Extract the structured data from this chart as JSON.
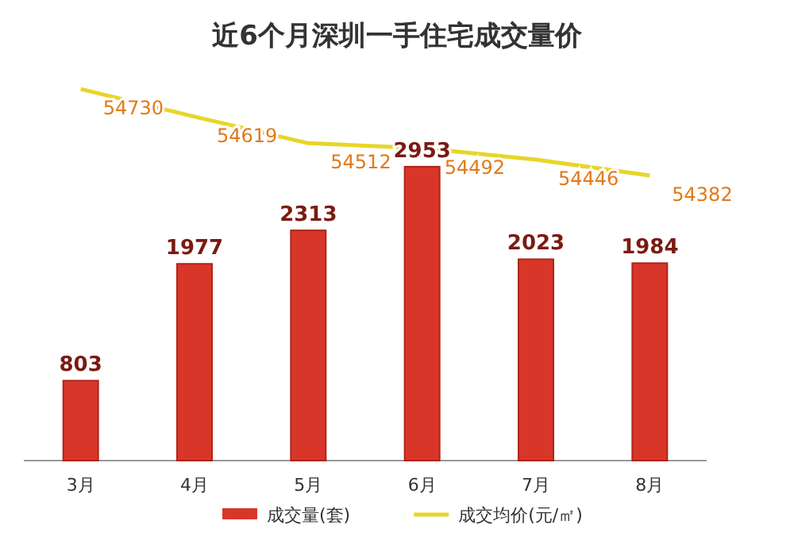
{
  "chart_data": {
    "type": "bar",
    "title": "近6个月深圳一手住宅成交量价",
    "categories": [
      "3月",
      "4月",
      "5月",
      "6月",
      "7月",
      "8月"
    ],
    "series": [
      {
        "name": "成交量(套)",
        "color": "#d9362a",
        "values": [
          803,
          1977,
          2313,
          2953,
          2023,
          1984
        ]
      },
      {
        "name": "成交均价(元/㎡)",
        "type": "line",
        "axis": "y2",
        "color": "#e8d52a",
        "values": [
          54730,
          54619,
          54512,
          54492,
          54446,
          54382
        ]
      }
    ],
    "data_labels": true,
    "legend": "bottom",
    "grid": false,
    "marker": "none"
  }
}
